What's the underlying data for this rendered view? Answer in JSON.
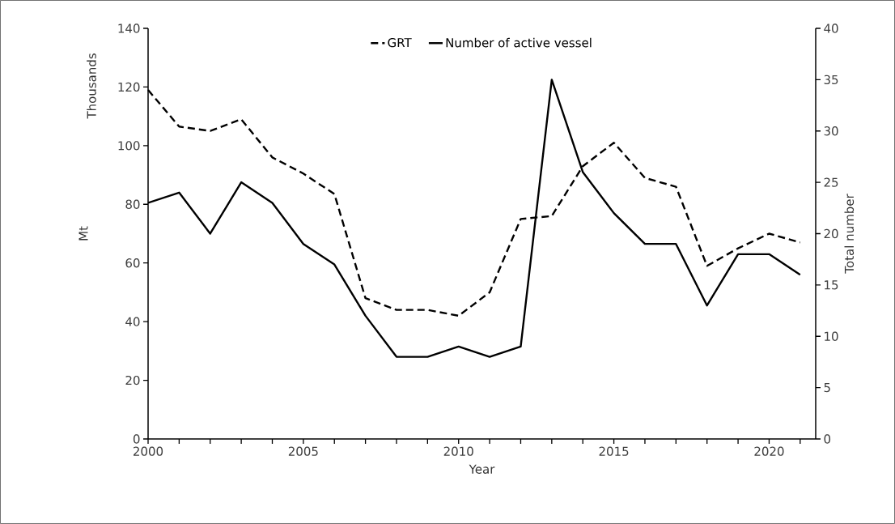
{
  "chart_data": {
    "type": "line",
    "xlabel": "Year",
    "ylabel": "Mt",
    "y2label": "Total number",
    "annotations": [
      "Thousands"
    ],
    "x": [
      2000,
      2001,
      2002,
      2003,
      2004,
      2005,
      2006,
      2007,
      2008,
      2009,
      2010,
      2011,
      2012,
      2013,
      2014,
      2015,
      2016,
      2017,
      2018,
      2019,
      2020,
      2021
    ],
    "series": [
      {
        "name": "GRT",
        "color": "#000000",
        "line_style": "dashed",
        "values": [
          119,
          106.5,
          105,
          109,
          96,
          90.5,
          83.5,
          48,
          44,
          44,
          42,
          50,
          75,
          76,
          93,
          101,
          89,
          86,
          59,
          65,
          70,
          67
        ]
      },
      {
        "name": "Number of active vessel",
        "color": "#000000",
        "line_style": "solid",
        "axis": "y2",
        "values": [
          23,
          24,
          20,
          25,
          23,
          19,
          17,
          12,
          8,
          8,
          9,
          8,
          9,
          35,
          26,
          22,
          19,
          19,
          13,
          18,
          18,
          16
        ]
      }
    ],
    "xlim": [
      2000,
      2021.5
    ],
    "xticks": [
      2000,
      {
        "value": 2001,
        "label": null
      },
      {
        "value": 2002,
        "label": null
      },
      {
        "value": 2003,
        "label": null
      },
      {
        "value": 2004,
        "label": null
      },
      2005,
      {
        "value": 2006,
        "label": null
      },
      {
        "value": 2007,
        "label": null
      },
      {
        "value": 2008,
        "label": null
      },
      {
        "value": 2009,
        "label": null
      },
      2010,
      {
        "value": 2011,
        "label": null
      },
      {
        "value": 2012,
        "label": null
      },
      {
        "value": 2013,
        "label": null
      },
      {
        "value": 2014,
        "label": null
      },
      2015,
      {
        "value": 2016,
        "label": null
      },
      {
        "value": 2017,
        "label": null
      },
      {
        "value": 2018,
        "label": null
      },
      {
        "value": 2019,
        "label": null
      },
      2020,
      {
        "value": 2021,
        "label": null
      }
    ],
    "ylim": [
      0,
      140
    ],
    "yticks": [
      0,
      20,
      40,
      60,
      80,
      100,
      120,
      140
    ],
    "y2lim": [
      0,
      40
    ],
    "y2ticks": [
      0,
      5,
      10,
      15,
      20,
      25,
      30,
      35,
      40
    ],
    "legend": "top",
    "grid": false,
    "marker": "none"
  }
}
